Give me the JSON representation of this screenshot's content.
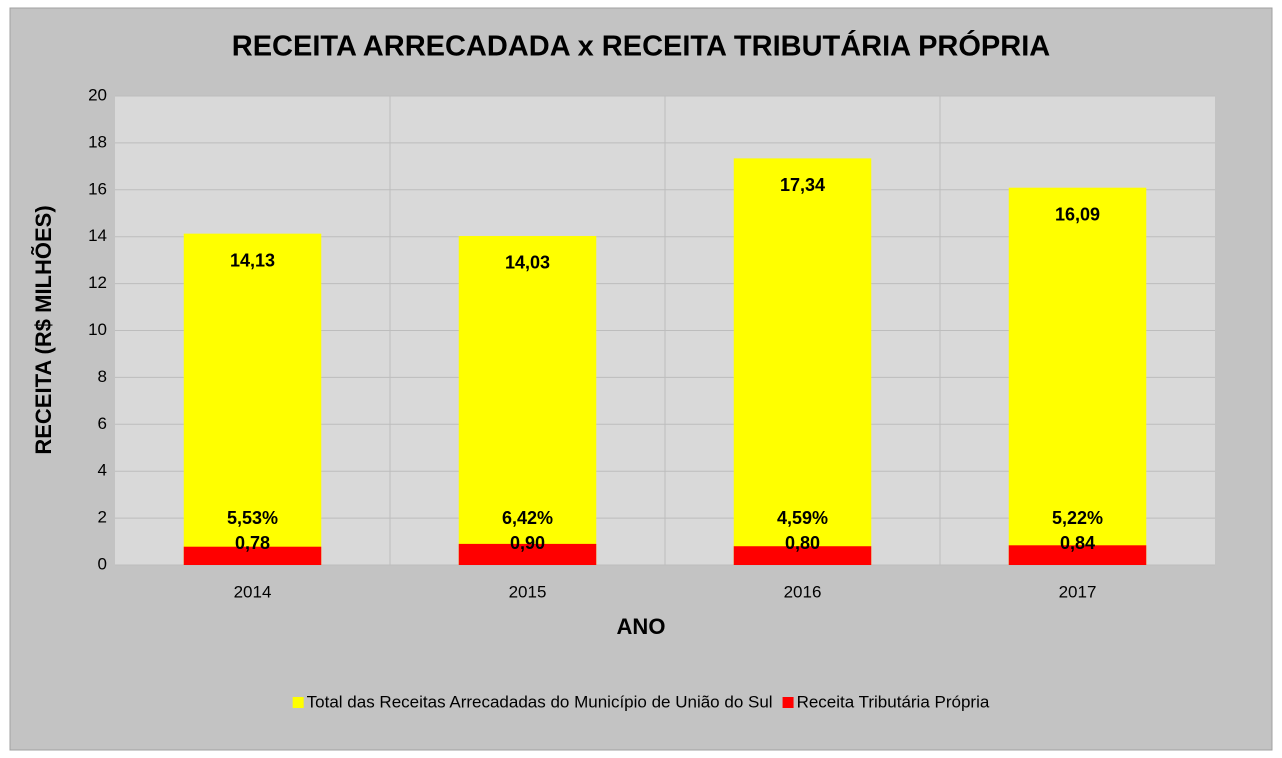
{
  "chart_data": {
    "type": "bar",
    "title": "RECEITA ARRECADADA x RECEITA TRIBUTÁRIA PRÓPRIA",
    "x_label": "ANO",
    "y_label": "RECEITA (R$ MILHÕES)",
    "categories": [
      "2014",
      "2015",
      "2016",
      "2017"
    ],
    "series": [
      {
        "name": "Total das Receitas Arrecadadas do Município de União do Sul",
        "color": "#ffff00",
        "values": [
          14.13,
          14.03,
          17.34,
          16.09
        ],
        "value_labels": [
          "14,13",
          "14,03",
          "17,34",
          "16,09"
        ]
      },
      {
        "name": "Receita Tributária Própria",
        "color": "#ff0000",
        "values": [
          0.78,
          0.9,
          0.8,
          0.84
        ],
        "value_labels": [
          "0,78",
          "0,90",
          "0,80",
          "0,84"
        ]
      }
    ],
    "percent_labels": [
      "5,53%",
      "6,42%",
      "4,59%",
      "5,22%"
    ],
    "ylim": [
      0,
      20
    ],
    "yticks": [
      0,
      2,
      4,
      6,
      8,
      10,
      12,
      14,
      16,
      18,
      20
    ],
    "grid": true,
    "legend": "bottom"
  }
}
